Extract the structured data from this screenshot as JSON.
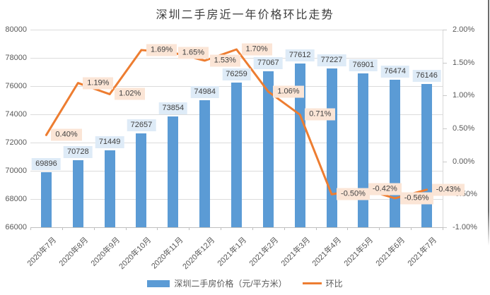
{
  "title": "深圳二手房近一年价格环比走势",
  "chart_data": {
    "type": "bar",
    "subtype": "combo-bar-line-dual-axis",
    "title": "深圳二手房近一年价格环比走势",
    "categories": [
      "2020年7月",
      "2020年8月",
      "2020年9月",
      "2020年10月",
      "2020年11月",
      "2020年12月",
      "2021年1月",
      "2021年2月",
      "2021年3月",
      "2021年4月",
      "2021年5月",
      "2021年6月",
      "2021年7月"
    ],
    "series": [
      {
        "name": "深圳二手房价格（元/平方米）",
        "type": "bar",
        "axis": "left",
        "color": "#5B9BD5",
        "values": [
          69896,
          70728,
          71449,
          72657,
          73854,
          74984,
          76259,
          77067,
          77612,
          77227,
          76901,
          76474,
          76146
        ]
      },
      {
        "name": "环比",
        "type": "line",
        "axis": "right",
        "color": "#ED7D31",
        "values": [
          0.4,
          1.19,
          1.02,
          1.69,
          1.65,
          1.53,
          1.7,
          1.06,
          0.71,
          -0.5,
          -0.42,
          -0.56,
          -0.43
        ],
        "labels": [
          "0.40%",
          "1.19%",
          "1.02%",
          "1.69%",
          "1.65%",
          "1.53%",
          "1.70%",
          "1.06%",
          "0.71%",
          "-0.50%",
          "-0.42%",
          "-0.56%",
          "-0.43%"
        ]
      }
    ],
    "left_axis": {
      "min": 66000,
      "max": 80000,
      "step": 2000,
      "ticks": [
        "80000",
        "78000",
        "76000",
        "74000",
        "72000",
        "70000",
        "68000",
        "66000"
      ]
    },
    "right_axis": {
      "min": -1.0,
      "max": 2.0,
      "step": 0.5,
      "ticks": [
        "2.00%",
        "1.50%",
        "1.00%",
        "0.50%",
        "0.00%",
        "-0.50%",
        "-1.00%"
      ]
    },
    "grid": "horizontal",
    "legend_position": "bottom"
  },
  "legend": {
    "bar_label": "深圳二手房价格（元/平方米）",
    "line_label": "环比"
  },
  "colors": {
    "bar": "#5B9BD5",
    "line": "#ED7D31",
    "bar_label_bg": "#DEEBF7",
    "pct_label_bg": "#FBE5D6",
    "label_text": "#404040",
    "axis_text": "#595959",
    "gridline": "#DCDCDC"
  }
}
